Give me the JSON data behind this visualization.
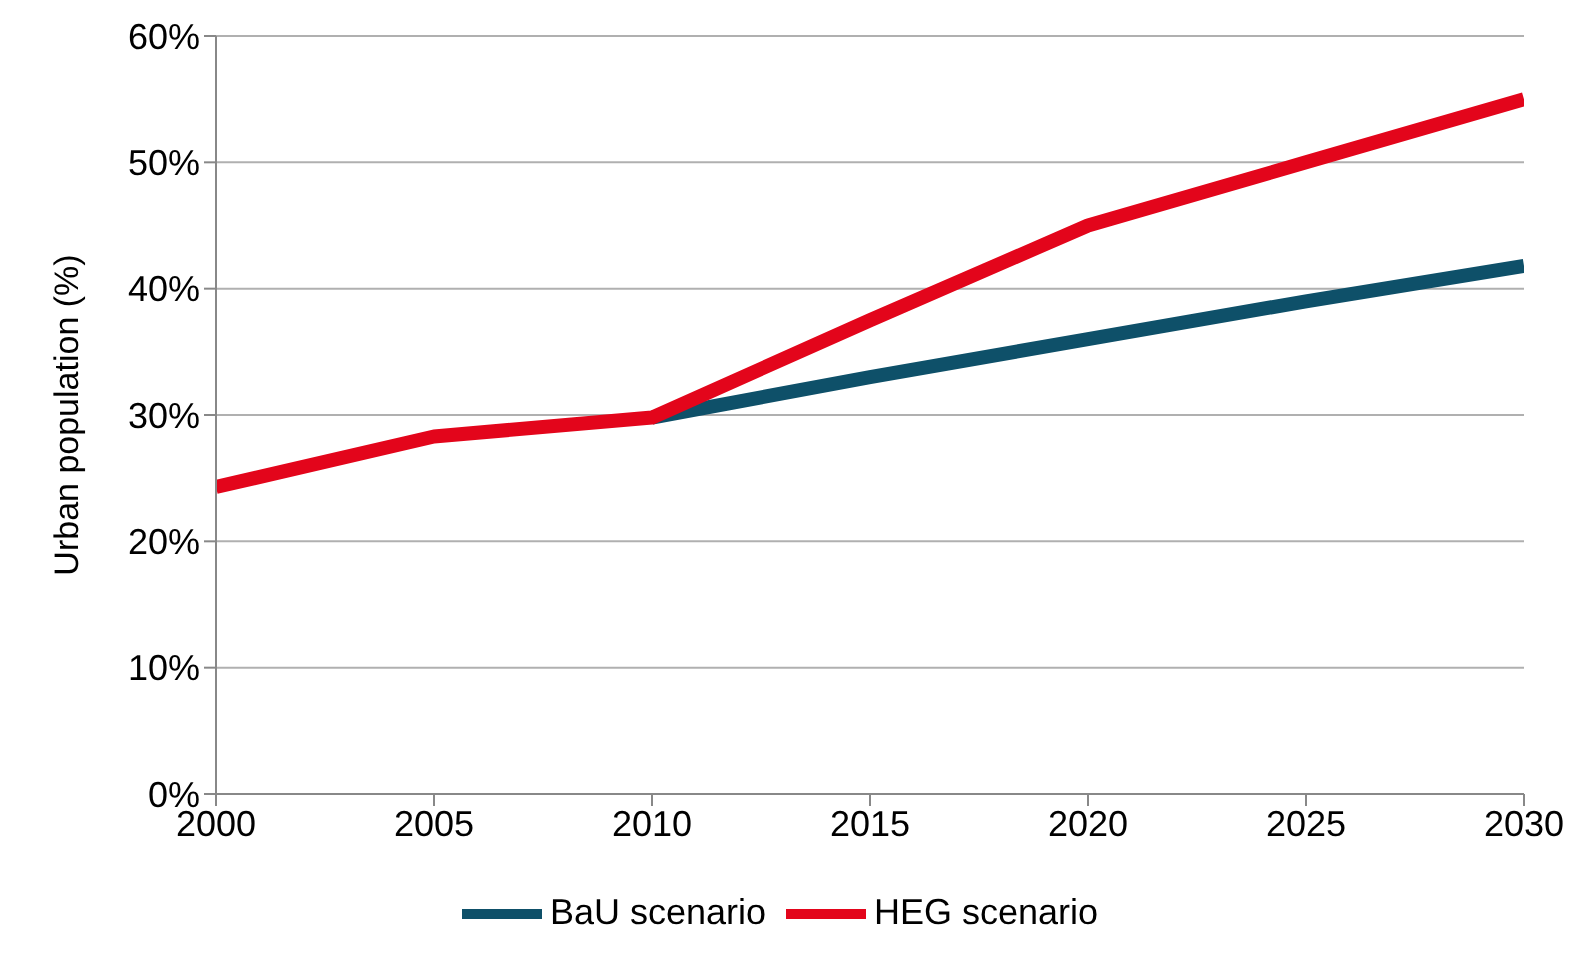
{
  "chart_data": {
    "type": "line",
    "ylabel": "Urban population (%)",
    "x": [
      2000,
      2005,
      2010,
      2015,
      2020,
      2025,
      2030
    ],
    "series": [
      {
        "name": "BaU scenario",
        "color": "#0e5069",
        "values": [
          null,
          null,
          29.8,
          33,
          36,
          39,
          41.8
        ]
      },
      {
        "name": "HEG scenario",
        "color": "#e3051b",
        "values": [
          24.3,
          28.3,
          29.8,
          37.5,
          45,
          50,
          55
        ]
      }
    ],
    "xlim": [
      2000,
      2030
    ],
    "xticks": [
      2000,
      2005,
      2010,
      2015,
      2020,
      2025,
      2030
    ],
    "ylim": [
      0,
      60
    ],
    "yticks": [
      {
        "value": 0,
        "label": "0%"
      },
      {
        "value": 10,
        "label": "10%"
      },
      {
        "value": 20,
        "label": "20%"
      },
      {
        "value": 30,
        "label": "30%"
      },
      {
        "value": 40,
        "label": "40%"
      },
      {
        "value": 50,
        "label": "50%"
      },
      {
        "value": 60,
        "label": "60%"
      }
    ],
    "grid": "y",
    "legend": "bottom",
    "marker": "none",
    "line_style": "solid"
  }
}
